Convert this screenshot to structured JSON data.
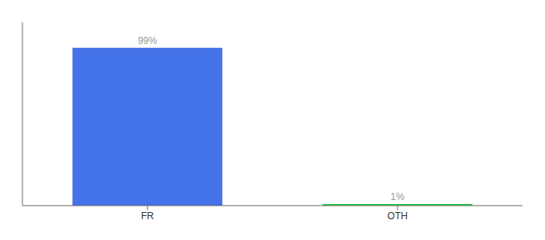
{
  "chart_data": {
    "type": "bar",
    "categories": [
      "FR",
      "OTH"
    ],
    "values": [
      99,
      1
    ],
    "colors": [
      "#4472e8",
      "#22cc44"
    ],
    "data_labels": true,
    "value_labels": [
      "99%",
      "1%"
    ],
    "ylim": [
      0,
      115
    ],
    "tick_labels": "x",
    "grid": false
  }
}
